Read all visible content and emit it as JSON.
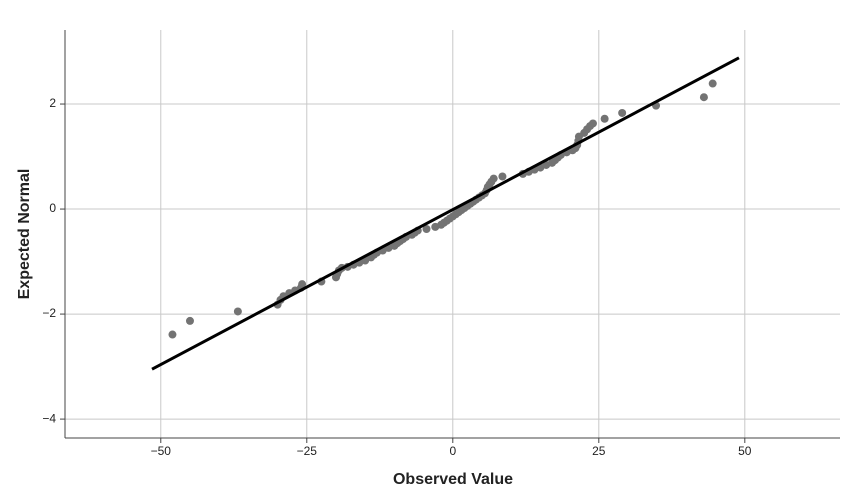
{
  "chart_data": {
    "type": "scatter",
    "x_label": "Observed Value",
    "y_label": "Expected Normal",
    "xlim": [
      -66.4,
      66.3
    ],
    "ylim": [
      -4.36,
      3.41
    ],
    "xticks": [
      {
        "value": -50,
        "label": "−50"
      },
      {
        "value": -25,
        "label": "−25"
      },
      0,
      25,
      50
    ],
    "yticks": [
      {
        "value": -4,
        "label": "−4"
      },
      {
        "value": -2,
        "label": "−2"
      },
      0,
      2
    ],
    "grid": true,
    "points": {
      "color": "#737373",
      "x": [
        -48,
        -45,
        -36.8,
        -30,
        -29.5,
        -29,
        -28,
        -27,
        -26,
        -25.8,
        -22.5,
        -20,
        -19.8,
        -19.5,
        -19,
        -18,
        -17,
        -16,
        -15,
        -14,
        -13.5,
        -13,
        -12,
        -11,
        -10,
        -9.5,
        -9,
        -8.5,
        -8,
        -7,
        -6.5,
        -6,
        -4.5,
        -3,
        -2,
        -1.5,
        -1,
        -0.5,
        0,
        0.5,
        1,
        1.5,
        2,
        2.5,
        3,
        3.5,
        4,
        4.5,
        5,
        5.5,
        5.8,
        6,
        6.3,
        6.6,
        7,
        8.5,
        12,
        13,
        14,
        15,
        16,
        17,
        17.5,
        18,
        18.5,
        19.5,
        20.5,
        21,
        21.3,
        21.5,
        21.6,
        22.5,
        23,
        23.5,
        24,
        26,
        29,
        34.8,
        43,
        44.5
      ],
      "y": [
        -2.39,
        -2.13,
        -1.95,
        -1.82,
        -1.73,
        -1.66,
        -1.6,
        -1.55,
        -1.5,
        -1.43,
        -1.38,
        -1.3,
        -1.24,
        -1.17,
        -1.12,
        -1.1,
        -1.06,
        -1.02,
        -0.98,
        -0.92,
        -0.87,
        -0.83,
        -0.79,
        -0.74,
        -0.7,
        -0.65,
        -0.61,
        -0.57,
        -0.53,
        -0.49,
        -0.45,
        -0.41,
        -0.38,
        -0.34,
        -0.3,
        -0.26,
        -0.22,
        -0.18,
        -0.14,
        -0.1,
        -0.06,
        -0.02,
        0.02,
        0.06,
        0.1,
        0.14,
        0.18,
        0.22,
        0.26,
        0.3,
        0.36,
        0.42,
        0.47,
        0.52,
        0.58,
        0.62,
        0.67,
        0.71,
        0.75,
        0.79,
        0.84,
        0.88,
        0.93,
        0.98,
        1.03,
        1.08,
        1.12,
        1.16,
        1.22,
        1.3,
        1.38,
        1.45,
        1.52,
        1.58,
        1.63,
        1.72,
        1.83,
        1.97,
        2.13,
        2.39
      ]
    },
    "line": {
      "color": "#000000",
      "x": [
        -51.5,
        49
      ],
      "y": [
        -3.05,
        2.88
      ]
    }
  }
}
